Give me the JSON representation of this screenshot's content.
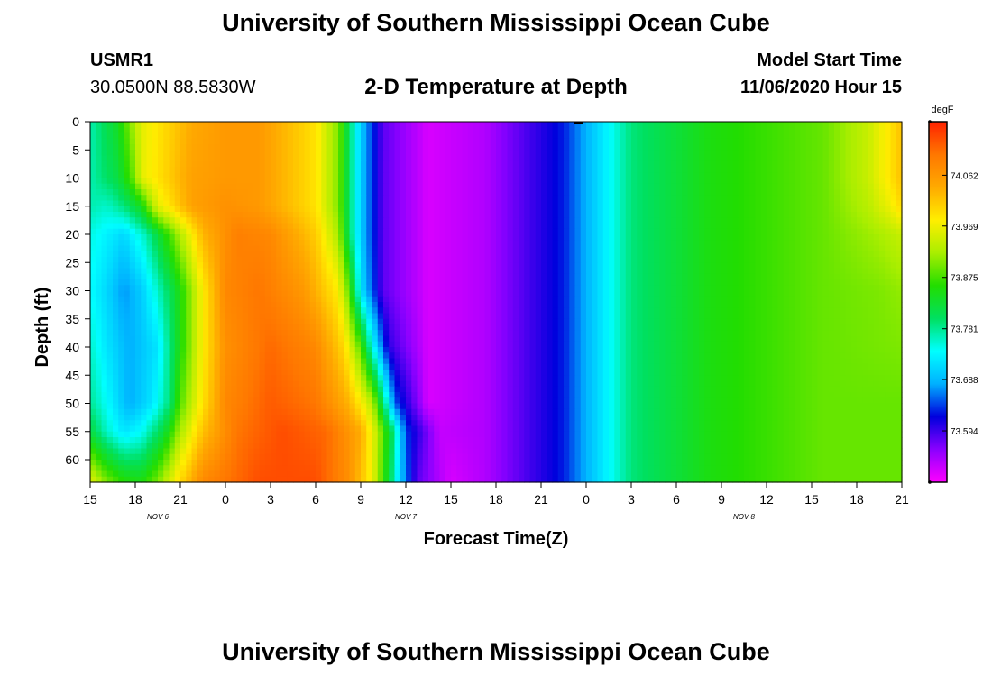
{
  "header": {
    "title_top": "University of Southern Mississippi Ocean Cube",
    "title_bottom": "University of Southern Mississippi Ocean Cube",
    "station_id": "USMR1",
    "location": "30.0500N 88.5830W",
    "product": "2-D Temperature at Depth",
    "model_start_label": "Model Start Time",
    "model_start_value": "11/06/2020 Hour 15"
  },
  "chart_data": {
    "type": "heatmap",
    "title": "2-D Temperature at Depth",
    "xlabel": "Forecast Time(Z)",
    "ylabel": "Depth (ft)",
    "x_ticks": [
      "15",
      "18",
      "21",
      "0",
      "3",
      "6",
      "9",
      "12",
      "15",
      "18",
      "21",
      "0",
      "3",
      "6",
      "9",
      "12",
      "15",
      "18",
      "21"
    ],
    "date_labels": [
      {
        "label": "NOV 6",
        "tick_index": 1.5
      },
      {
        "label": "NOV 7",
        "tick_index": 7
      },
      {
        "label": "NOV 8",
        "tick_index": 14.5
      }
    ],
    "y_ticks": [
      "0",
      "5",
      "10",
      "15",
      "20",
      "25",
      "30",
      "35",
      "40",
      "45",
      "50",
      "55",
      "60"
    ],
    "y_range_ft": [
      0,
      64
    ],
    "colorbar": {
      "unit": "degF",
      "range": [
        73.5,
        74.16
      ],
      "tick_values": [
        "74.062",
        "73.969",
        "73.875",
        "73.781",
        "73.688",
        "73.594"
      ],
      "colors": [
        "#ff00ff",
        "#8a00ff",
        "#0000dd",
        "#00b0ff",
        "#00ffff",
        "#00e060",
        "#22dd00",
        "#aaee00",
        "#ffee00",
        "#ffaa00",
        "#ff7700",
        "#ff2200"
      ]
    },
    "hours_axis": [
      0,
      144
    ],
    "depth_axis": [
      0,
      10,
      15,
      20,
      30,
      40,
      50,
      55,
      64
    ],
    "temperature_degF_by_depth": {
      "0": [
        [
          0,
          73.77
        ],
        [
          5,
          73.84
        ],
        [
          8,
          73.93
        ],
        [
          9,
          73.96
        ],
        [
          18,
          74.04
        ],
        [
          24,
          74.06
        ],
        [
          30,
          74.06
        ],
        [
          40,
          73.99
        ],
        [
          44,
          73.9
        ],
        [
          46,
          73.8
        ],
        [
          48,
          73.7
        ],
        [
          52,
          73.58
        ],
        [
          60,
          73.52
        ],
        [
          70,
          73.54
        ],
        [
          84,
          73.63
        ],
        [
          90,
          73.71
        ],
        [
          96,
          73.79
        ],
        [
          110,
          73.85
        ],
        [
          130,
          73.89
        ],
        [
          138,
          73.94
        ],
        [
          142,
          73.99
        ],
        [
          144,
          74.02
        ]
      ],
      "10": [
        [
          0,
          73.77
        ],
        [
          5,
          73.82
        ],
        [
          8,
          73.9
        ],
        [
          9,
          73.96
        ],
        [
          18,
          74.05
        ],
        [
          24,
          74.06
        ],
        [
          30,
          74.06
        ],
        [
          40,
          73.99
        ],
        [
          44,
          73.9
        ],
        [
          46,
          73.8
        ],
        [
          48,
          73.7
        ],
        [
          52,
          73.58
        ],
        [
          60,
          73.52
        ],
        [
          70,
          73.54
        ],
        [
          84,
          73.63
        ],
        [
          90,
          73.71
        ],
        [
          96,
          73.79
        ],
        [
          110,
          73.85
        ],
        [
          130,
          73.89
        ],
        [
          138,
          73.94
        ],
        [
          142,
          73.99
        ],
        [
          144,
          74.02
        ]
      ],
      "15": [
        [
          0,
          73.77
        ],
        [
          3,
          73.76
        ],
        [
          6,
          73.79
        ],
        [
          9,
          73.84
        ],
        [
          12,
          73.96
        ],
        [
          18,
          74.05
        ],
        [
          24,
          74.07
        ],
        [
          30,
          74.06
        ],
        [
          40,
          73.99
        ],
        [
          44,
          73.9
        ],
        [
          46,
          73.8
        ],
        [
          48,
          73.7
        ],
        [
          52,
          73.58
        ],
        [
          60,
          73.52
        ],
        [
          70,
          73.54
        ],
        [
          84,
          73.63
        ],
        [
          90,
          73.71
        ],
        [
          96,
          73.79
        ],
        [
          110,
          73.85
        ],
        [
          130,
          73.89
        ],
        [
          138,
          73.93
        ],
        [
          142,
          73.97
        ],
        [
          144,
          74.0
        ]
      ],
      "20": [
        [
          0,
          73.75
        ],
        [
          3,
          73.73
        ],
        [
          6,
          73.71
        ],
        [
          10,
          73.77
        ],
        [
          15,
          73.9
        ],
        [
          20,
          74.03
        ],
        [
          26,
          74.09
        ],
        [
          32,
          74.08
        ],
        [
          40,
          74.01
        ],
        [
          44,
          73.92
        ],
        [
          46,
          73.8
        ],
        [
          48,
          73.7
        ],
        [
          52,
          73.58
        ],
        [
          60,
          73.52
        ],
        [
          70,
          73.54
        ],
        [
          84,
          73.63
        ],
        [
          90,
          73.71
        ],
        [
          96,
          73.79
        ],
        [
          110,
          73.85
        ],
        [
          130,
          73.89
        ],
        [
          140,
          73.92
        ],
        [
          144,
          73.94
        ]
      ],
      "30": [
        [
          0,
          73.74
        ],
        [
          3,
          73.71
        ],
        [
          6,
          73.67
        ],
        [
          9,
          73.7
        ],
        [
          12,
          73.76
        ],
        [
          16,
          73.85
        ],
        [
          20,
          73.98
        ],
        [
          24,
          74.08
        ],
        [
          30,
          74.1
        ],
        [
          38,
          74.06
        ],
        [
          44,
          73.98
        ],
        [
          46,
          73.88
        ],
        [
          48,
          73.72
        ],
        [
          52,
          73.58
        ],
        [
          60,
          73.52
        ],
        [
          70,
          73.54
        ],
        [
          84,
          73.63
        ],
        [
          90,
          73.71
        ],
        [
          96,
          73.79
        ],
        [
          110,
          73.85
        ],
        [
          130,
          73.89
        ],
        [
          140,
          73.9
        ],
        [
          144,
          73.91
        ]
      ],
      "40": [
        [
          0,
          73.76
        ],
        [
          3,
          73.72
        ],
        [
          7,
          73.68
        ],
        [
          12,
          73.72
        ],
        [
          16,
          73.85
        ],
        [
          20,
          73.98
        ],
        [
          24,
          74.07
        ],
        [
          32,
          74.11
        ],
        [
          40,
          74.08
        ],
        [
          45,
          74.0
        ],
        [
          48,
          73.88
        ],
        [
          50,
          73.75
        ],
        [
          53,
          73.6
        ],
        [
          60,
          73.52
        ],
        [
          70,
          73.54
        ],
        [
          84,
          73.63
        ],
        [
          90,
          73.71
        ],
        [
          96,
          73.79
        ],
        [
          110,
          73.85
        ],
        [
          130,
          73.89
        ],
        [
          144,
          73.9
        ]
      ],
      "50": [
        [
          0,
          73.78
        ],
        [
          3,
          73.74
        ],
        [
          7,
          73.68
        ],
        [
          11,
          73.72
        ],
        [
          14,
          73.79
        ],
        [
          16,
          73.88
        ],
        [
          20,
          73.99
        ],
        [
          24,
          74.08
        ],
        [
          32,
          74.12
        ],
        [
          40,
          74.1
        ],
        [
          46,
          74.03
        ],
        [
          50,
          73.93
        ],
        [
          52,
          73.8
        ],
        [
          54,
          73.65
        ],
        [
          60,
          73.52
        ],
        [
          70,
          73.54
        ],
        [
          84,
          73.63
        ],
        [
          90,
          73.71
        ],
        [
          96,
          73.79
        ],
        [
          110,
          73.85
        ],
        [
          130,
          73.89
        ],
        [
          144,
          73.89
        ]
      ],
      "55": [
        [
          0,
          73.82
        ],
        [
          3,
          73.76
        ],
        [
          6,
          73.72
        ],
        [
          9,
          73.74
        ],
        [
          13,
          73.82
        ],
        [
          16,
          73.92
        ],
        [
          20,
          74.02
        ],
        [
          26,
          74.1
        ],
        [
          34,
          74.13
        ],
        [
          42,
          74.11
        ],
        [
          48,
          74.04
        ],
        [
          51,
          73.93
        ],
        [
          54,
          73.78
        ],
        [
          56,
          73.64
        ],
        [
          62,
          73.53
        ],
        [
          70,
          73.54
        ],
        [
          84,
          73.63
        ],
        [
          90,
          73.71
        ],
        [
          96,
          73.79
        ],
        [
          110,
          73.85
        ],
        [
          130,
          73.89
        ],
        [
          144,
          73.89
        ]
      ],
      "64": [
        [
          0,
          73.96
        ],
        [
          3,
          73.9
        ],
        [
          6,
          73.86
        ],
        [
          9,
          73.85
        ],
        [
          12,
          73.9
        ],
        [
          16,
          74.0
        ],
        [
          20,
          74.08
        ],
        [
          30,
          74.13
        ],
        [
          40,
          74.13
        ],
        [
          46,
          74.07
        ],
        [
          50,
          73.97
        ],
        [
          53,
          73.82
        ],
        [
          55,
          73.7
        ],
        [
          58,
          73.58
        ],
        [
          64,
          73.52
        ],
        [
          70,
          73.54
        ],
        [
          84,
          73.63
        ],
        [
          90,
          73.71
        ],
        [
          96,
          73.79
        ],
        [
          110,
          73.85
        ],
        [
          130,
          73.89
        ],
        [
          144,
          73.89
        ]
      ]
    }
  }
}
